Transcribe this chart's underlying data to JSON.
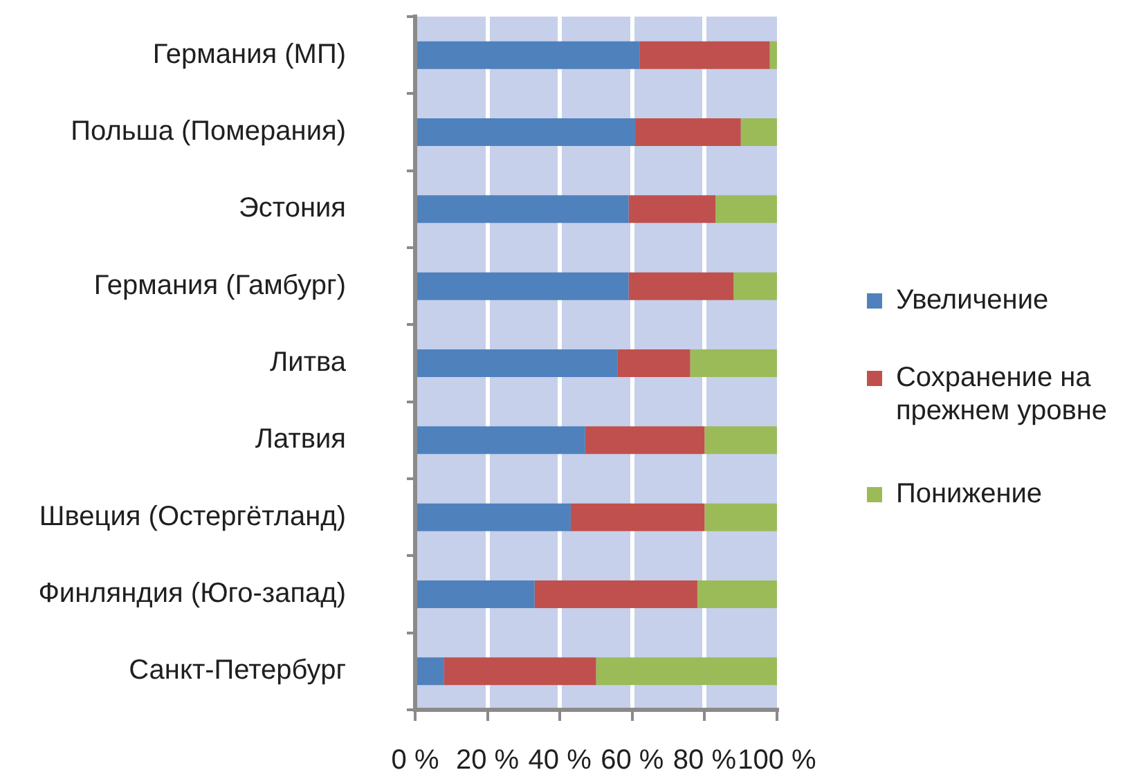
{
  "chart_data": {
    "type": "bar",
    "orientation": "horizontal",
    "stacked": true,
    "categories": [
      "Германия (МП)",
      "Польша (Померания)",
      "Эстония",
      "Германия (Гамбург)",
      "Литва",
      "Латвия",
      "Швеция (Остергётланд)",
      "Финляндия (Юго-запад)",
      "Санкт-Петербург"
    ],
    "series": [
      {
        "name": "Увеличение",
        "color": "#4f81bd",
        "values": [
          62,
          61,
          59,
          59,
          56,
          47,
          43,
          33,
          8
        ]
      },
      {
        "name": "Сохранение на прежнем уровне",
        "color": "#c0504d",
        "values": [
          36,
          29,
          24,
          29,
          20,
          33,
          37,
          45,
          42
        ]
      },
      {
        "name": "Понижение",
        "color": "#9bbb59",
        "values": [
          2,
          10,
          17,
          12,
          24,
          20,
          20,
          22,
          50
        ]
      }
    ],
    "xlim": [
      0,
      100
    ],
    "xticks": [
      {
        "value": 0,
        "label": "0 %"
      },
      {
        "value": 20,
        "label": "20 %"
      },
      {
        "value": 40,
        "label": "40 %"
      },
      {
        "value": 60,
        "label": "60 %"
      },
      {
        "value": 80,
        "label": "80 %"
      },
      {
        "value": 100,
        "label": "100 %"
      }
    ],
    "grid": "x",
    "legend": "right"
  }
}
